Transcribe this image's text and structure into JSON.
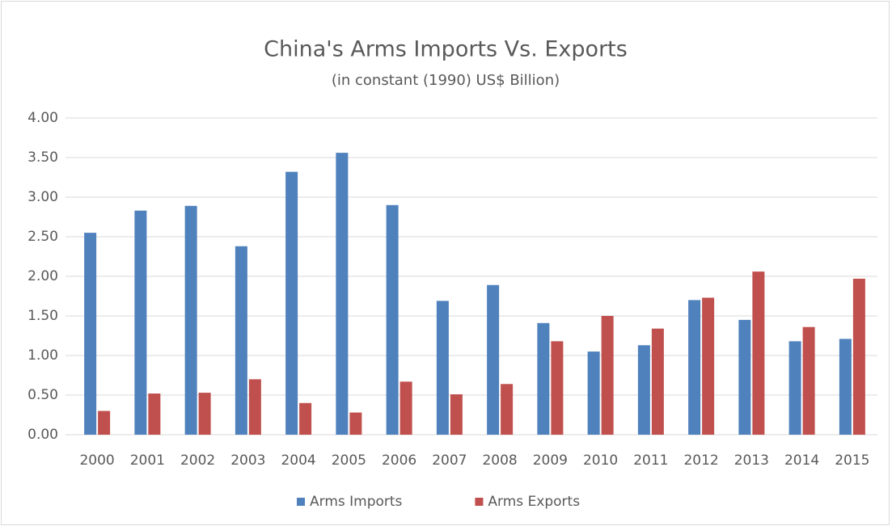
{
  "chart_data": {
    "type": "bar",
    "title": "China's Arms Imports Vs. Exports",
    "subtitle": "(in constant (1990) US$ Billion)",
    "categories": [
      "2000",
      "2001",
      "2002",
      "2003",
      "2004",
      "2005",
      "2006",
      "2007",
      "2008",
      "2009",
      "2010",
      "2011",
      "2012",
      "2013",
      "2014",
      "2015"
    ],
    "series": [
      {
        "name": "Arms Imports",
        "color": "#4f81bd",
        "values": [
          2.55,
          2.83,
          2.89,
          2.38,
          3.32,
          3.56,
          2.9,
          1.69,
          1.89,
          1.41,
          1.05,
          1.13,
          1.7,
          1.45,
          1.18,
          1.21
        ]
      },
      {
        "name": "Arms Exports",
        "color": "#c0504d",
        "values": [
          0.3,
          0.52,
          0.53,
          0.7,
          0.4,
          0.28,
          0.67,
          0.51,
          0.64,
          1.18,
          1.5,
          1.34,
          1.73,
          2.06,
          1.36,
          1.97
        ]
      }
    ],
    "ylim": [
      0,
      4
    ],
    "yticks": [
      {
        "value": 0,
        "label": "0.00"
      },
      {
        "value": 0.5,
        "label": "0.50"
      },
      {
        "value": 1,
        "label": "1.00"
      },
      {
        "value": 1.5,
        "label": "1.50"
      },
      {
        "value": 2,
        "label": "2.00"
      },
      {
        "value": 2.5,
        "label": "2.50"
      },
      {
        "value": 3,
        "label": "3.00"
      },
      {
        "value": 3.5,
        "label": "3.50"
      },
      {
        "value": 4,
        "label": "4.00"
      }
    ],
    "grid": true,
    "legend": "bottom"
  }
}
